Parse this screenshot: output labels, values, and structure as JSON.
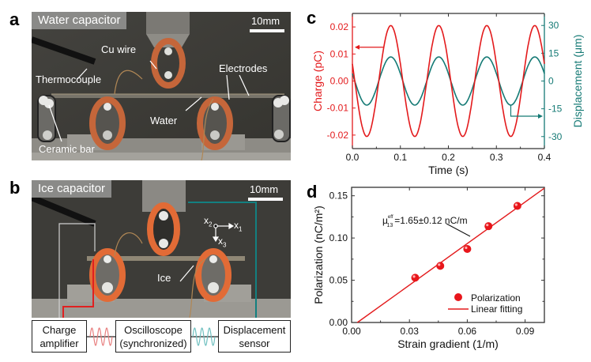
{
  "panels": {
    "a": {
      "letter": "a",
      "title": "Water capacitor",
      "scale": "10mm",
      "labels": {
        "cu_wire": "Cu wire",
        "thermocouple": "Thermocouple",
        "electrodes": "Electrodes",
        "water": "Water",
        "ceramic_bar": "Ceramic bar"
      }
    },
    "b": {
      "letter": "b",
      "title": "Ice capacitor",
      "scale": "10mm",
      "labels": {
        "ice": "Ice",
        "x1": "x",
        "x1_sub": "1",
        "x2": "x",
        "x2_sub": "2",
        "x3": "x",
        "x3_sub": "3"
      },
      "boxes": {
        "charge_amp_1": "Charge",
        "charge_amp_2": "amplifier",
        "scope_1": "Oscilloscope",
        "scope_2": "(synchronized)",
        "disp_1": "Displacement",
        "disp_2": "sensor"
      },
      "colors": {
        "charge": "#e03030",
        "displacement": "#138080"
      }
    },
    "c": {
      "letter": "c"
    },
    "d": {
      "letter": "d",
      "annotation_mu": "μ",
      "annotation_sup": "eff",
      "annotation_sub": "13",
      "annotation_text": "=1.65±0.12 nC/m"
    }
  },
  "chart_data": [
    {
      "type": "line",
      "panel": "c",
      "title": "",
      "xlabel": "Time (s)",
      "ylabel": "Charge (pC)",
      "y2label": "Displacement (μm)",
      "xlim": [
        0.0,
        0.4
      ],
      "ylim": [
        -0.025,
        0.025
      ],
      "y2lim": [
        -36.5,
        36.5
      ],
      "xticks": [
        "0.0",
        "0.1",
        "0.2",
        "0.3",
        "0.4"
      ],
      "xtick_values": [
        0.0,
        0.1,
        0.2,
        0.3,
        0.4
      ],
      "yticks": [
        "-0.02",
        "-0.01",
        "0.00",
        "0.01",
        "0.02"
      ],
      "ytick_values": [
        -0.02,
        -0.01,
        0.0,
        0.01,
        0.02
      ],
      "y2ticks": [
        "-30",
        "-15",
        "0",
        "15",
        "30"
      ],
      "y2tick_values": [
        -30,
        -15,
        0,
        15,
        30
      ],
      "series": [
        {
          "name": "Charge",
          "axis": "left",
          "color": "#e31a1c",
          "amplitude": 0.0205,
          "frequency_hz": 10,
          "peak_time_s": 0.08
        },
        {
          "name": "Displacement",
          "axis": "right",
          "color": "#157a75",
          "amplitude": 13,
          "frequency_hz": 10,
          "peak_time_s": 0.08
        }
      ],
      "grid": false
    },
    {
      "type": "scatter",
      "panel": "d",
      "title": "",
      "xlabel": "Strain gradient (1/m)",
      "ylabel": "Polarization (nC/m²)",
      "xlim": [
        0.0,
        0.1
      ],
      "ylim": [
        0.0,
        0.16
      ],
      "xticks": [
        "0.00",
        "0.03",
        "0.06",
        "0.09"
      ],
      "xtick_values": [
        0.0,
        0.03,
        0.06,
        0.09
      ],
      "yticks": [
        "0.00",
        "0.05",
        "0.10",
        "0.15"
      ],
      "ytick_values": [
        0.0,
        0.05,
        0.1,
        0.15
      ],
      "series": [
        {
          "name": "Polarization",
          "kind": "points",
          "color": "#e8161b",
          "x": [
            0.033,
            0.046,
            0.06,
            0.071,
            0.086
          ],
          "y": [
            0.053,
            0.067,
            0.087,
            0.114,
            0.138
          ]
        },
        {
          "name": "Linear fitting",
          "kind": "line",
          "color": "#e31a1c",
          "x": [
            0.003,
            0.1
          ],
          "y": [
            0.0,
            0.159
          ]
        }
      ],
      "legend": {
        "position": "bottom-right",
        "entries": [
          "Polarization",
          "Linear fitting"
        ]
      },
      "grid": false
    }
  ]
}
